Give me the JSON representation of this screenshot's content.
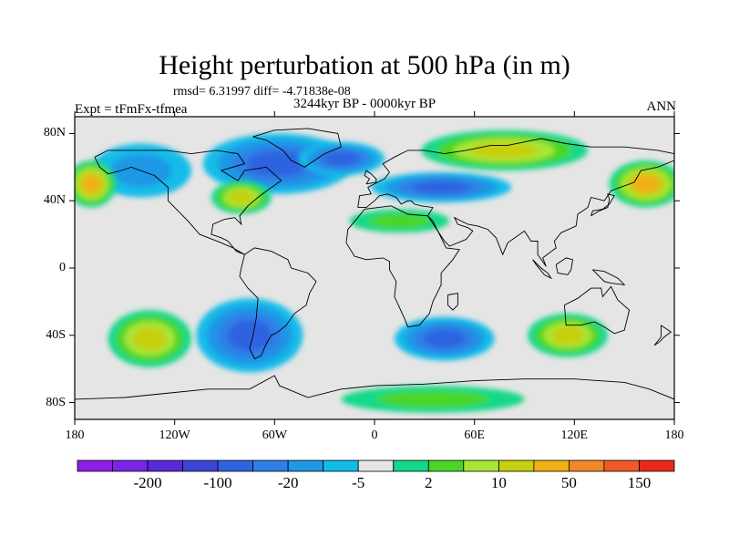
{
  "chart_data": {
    "type": "heatmap",
    "title": "Height perturbation at 500 hPa (in m)",
    "stats": "rmsd= 6.31997 diff= -4.71838e-08",
    "left_label": "Expt = tFmFx-tfmea",
    "center_label": "3244kyr BP - 0000kyr BP",
    "right_label": "ANN",
    "projection": "cylindrical-equidistant",
    "xlim": [
      -180,
      180
    ],
    "ylim": [
      -90,
      90
    ],
    "x_ticks": [
      {
        "value": -180,
        "label": "180"
      },
      {
        "value": -120,
        "label": "120W"
      },
      {
        "value": -60,
        "label": "60W"
      },
      {
        "value": 0,
        "label": "0"
      },
      {
        "value": 60,
        "label": "60E"
      },
      {
        "value": 120,
        "label": "120E"
      },
      {
        "value": 180,
        "label": "180"
      }
    ],
    "y_ticks": [
      {
        "value": 80,
        "label": "80N"
      },
      {
        "value": 40,
        "label": "40N"
      },
      {
        "value": 0,
        "label": "0"
      },
      {
        "value": -40,
        "label": "40S"
      },
      {
        "value": -80,
        "label": "80S"
      }
    ],
    "colorbar": {
      "colors": [
        "#8c1ee6",
        "#7a24ea",
        "#5a2ad8",
        "#3c46d6",
        "#2f64e0",
        "#2e80e6",
        "#1f98e6",
        "#12bce8",
        "#e5e5e5",
        "#14d889",
        "#4ad628",
        "#a6e638",
        "#c6d010",
        "#f0b014",
        "#f08828",
        "#f05a28",
        "#e82a1c"
      ],
      "tick_labels": [
        {
          "after_box": 2,
          "label": "-200"
        },
        {
          "after_box": 4,
          "label": "-100"
        },
        {
          "after_box": 6,
          "label": "-20"
        },
        {
          "after_box": 8,
          "label": "-5"
        },
        {
          "after_box": 10,
          "label": "2"
        },
        {
          "after_box": 12,
          "label": "10"
        },
        {
          "after_box": 14,
          "label": "50"
        },
        {
          "after_box": 16,
          "label": "150"
        }
      ]
    },
    "anomaly_regions": [
      {
        "lon": -58,
        "lat": 62,
        "rlon": 45,
        "rlat": 18,
        "level": "mid-blue"
      },
      {
        "lon": -20,
        "lat": 65,
        "rlon": 26,
        "rlat": 10,
        "level": "mid-blue"
      },
      {
        "lon": -140,
        "lat": 58,
        "rlon": 30,
        "rlat": 16,
        "level": "light-blue"
      },
      {
        "lon": 78,
        "lat": 70,
        "rlon": 50,
        "rlat": 12,
        "level": "yellow-green"
      },
      {
        "lon": 163,
        "lat": 50,
        "rlon": 22,
        "rlat": 14,
        "level": "yellow-orange"
      },
      {
        "lon": -170,
        "lat": 50,
        "rlon": 15,
        "rlat": 14,
        "level": "yellow-orange"
      },
      {
        "lon": -80,
        "lat": 42,
        "rlon": 18,
        "rlat": 10,
        "level": "yellow-green"
      },
      {
        "lon": 40,
        "lat": 48,
        "rlon": 42,
        "rlat": 9,
        "level": "mid-blue"
      },
      {
        "lon": 15,
        "lat": 28,
        "rlon": 30,
        "rlat": 7,
        "level": "green"
      },
      {
        "lon": -135,
        "lat": -42,
        "rlon": 25,
        "rlat": 17,
        "level": "yellow-green"
      },
      {
        "lon": -75,
        "lat": -40,
        "rlon": 32,
        "rlat": 22,
        "level": "mid-blue"
      },
      {
        "lon": 42,
        "lat": -42,
        "rlon": 30,
        "rlat": 13,
        "level": "mid-blue"
      },
      {
        "lon": 116,
        "lat": -40,
        "rlon": 24,
        "rlat": 13,
        "level": "yellow-green"
      },
      {
        "lon": 35,
        "lat": -78,
        "rlon": 55,
        "rlat": 8,
        "level": "green"
      }
    ]
  }
}
